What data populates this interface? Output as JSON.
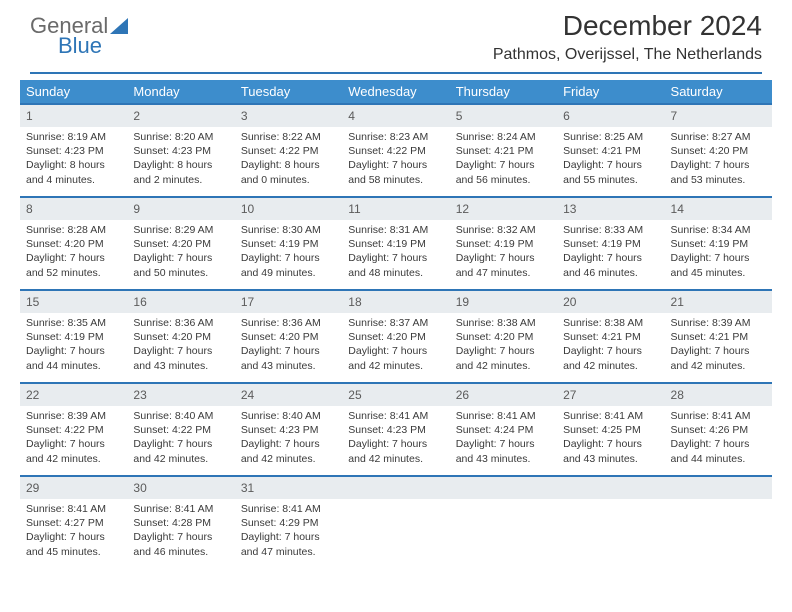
{
  "logo": {
    "textTop": "General",
    "textBottom": "Blue"
  },
  "title": "December 2024",
  "subtitle": "Pathmos, Overijssel, The Netherlands",
  "colors": {
    "headerBg": "#3d8dcc",
    "accent": "#2e75b6",
    "dayNumBg": "#e8ecef",
    "text": "#3a3a3a"
  },
  "weekdays": [
    "Sunday",
    "Monday",
    "Tuesday",
    "Wednesday",
    "Thursday",
    "Friday",
    "Saturday"
  ],
  "weeks": [
    [
      {
        "n": "1",
        "sr": "8:19 AM",
        "ss": "4:23 PM",
        "dl": "8 hours and 4 minutes."
      },
      {
        "n": "2",
        "sr": "8:20 AM",
        "ss": "4:23 PM",
        "dl": "8 hours and 2 minutes."
      },
      {
        "n": "3",
        "sr": "8:22 AM",
        "ss": "4:22 PM",
        "dl": "8 hours and 0 minutes."
      },
      {
        "n": "4",
        "sr": "8:23 AM",
        "ss": "4:22 PM",
        "dl": "7 hours and 58 minutes."
      },
      {
        "n": "5",
        "sr": "8:24 AM",
        "ss": "4:21 PM",
        "dl": "7 hours and 56 minutes."
      },
      {
        "n": "6",
        "sr": "8:25 AM",
        "ss": "4:21 PM",
        "dl": "7 hours and 55 minutes."
      },
      {
        "n": "7",
        "sr": "8:27 AM",
        "ss": "4:20 PM",
        "dl": "7 hours and 53 minutes."
      }
    ],
    [
      {
        "n": "8",
        "sr": "8:28 AM",
        "ss": "4:20 PM",
        "dl": "7 hours and 52 minutes."
      },
      {
        "n": "9",
        "sr": "8:29 AM",
        "ss": "4:20 PM",
        "dl": "7 hours and 50 minutes."
      },
      {
        "n": "10",
        "sr": "8:30 AM",
        "ss": "4:19 PM",
        "dl": "7 hours and 49 minutes."
      },
      {
        "n": "11",
        "sr": "8:31 AM",
        "ss": "4:19 PM",
        "dl": "7 hours and 48 minutes."
      },
      {
        "n": "12",
        "sr": "8:32 AM",
        "ss": "4:19 PM",
        "dl": "7 hours and 47 minutes."
      },
      {
        "n": "13",
        "sr": "8:33 AM",
        "ss": "4:19 PM",
        "dl": "7 hours and 46 minutes."
      },
      {
        "n": "14",
        "sr": "8:34 AM",
        "ss": "4:19 PM",
        "dl": "7 hours and 45 minutes."
      }
    ],
    [
      {
        "n": "15",
        "sr": "8:35 AM",
        "ss": "4:19 PM",
        "dl": "7 hours and 44 minutes."
      },
      {
        "n": "16",
        "sr": "8:36 AM",
        "ss": "4:20 PM",
        "dl": "7 hours and 43 minutes."
      },
      {
        "n": "17",
        "sr": "8:36 AM",
        "ss": "4:20 PM",
        "dl": "7 hours and 43 minutes."
      },
      {
        "n": "18",
        "sr": "8:37 AM",
        "ss": "4:20 PM",
        "dl": "7 hours and 42 minutes."
      },
      {
        "n": "19",
        "sr": "8:38 AM",
        "ss": "4:20 PM",
        "dl": "7 hours and 42 minutes."
      },
      {
        "n": "20",
        "sr": "8:38 AM",
        "ss": "4:21 PM",
        "dl": "7 hours and 42 minutes."
      },
      {
        "n": "21",
        "sr": "8:39 AM",
        "ss": "4:21 PM",
        "dl": "7 hours and 42 minutes."
      }
    ],
    [
      {
        "n": "22",
        "sr": "8:39 AM",
        "ss": "4:22 PM",
        "dl": "7 hours and 42 minutes."
      },
      {
        "n": "23",
        "sr": "8:40 AM",
        "ss": "4:22 PM",
        "dl": "7 hours and 42 minutes."
      },
      {
        "n": "24",
        "sr": "8:40 AM",
        "ss": "4:23 PM",
        "dl": "7 hours and 42 minutes."
      },
      {
        "n": "25",
        "sr": "8:41 AM",
        "ss": "4:23 PM",
        "dl": "7 hours and 42 minutes."
      },
      {
        "n": "26",
        "sr": "8:41 AM",
        "ss": "4:24 PM",
        "dl": "7 hours and 43 minutes."
      },
      {
        "n": "27",
        "sr": "8:41 AM",
        "ss": "4:25 PM",
        "dl": "7 hours and 43 minutes."
      },
      {
        "n": "28",
        "sr": "8:41 AM",
        "ss": "4:26 PM",
        "dl": "7 hours and 44 minutes."
      }
    ],
    [
      {
        "n": "29",
        "sr": "8:41 AM",
        "ss": "4:27 PM",
        "dl": "7 hours and 45 minutes."
      },
      {
        "n": "30",
        "sr": "8:41 AM",
        "ss": "4:28 PM",
        "dl": "7 hours and 46 minutes."
      },
      {
        "n": "31",
        "sr": "8:41 AM",
        "ss": "4:29 PM",
        "dl": "7 hours and 47 minutes."
      },
      null,
      null,
      null,
      null
    ]
  ],
  "labels": {
    "sunrise": "Sunrise: ",
    "sunset": "Sunset: ",
    "daylight": "Daylight: "
  }
}
